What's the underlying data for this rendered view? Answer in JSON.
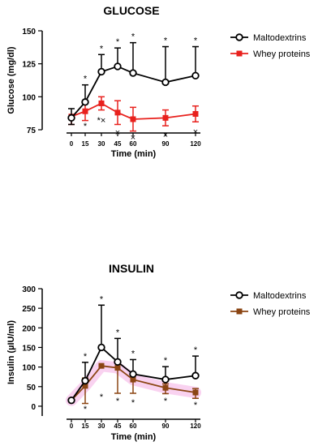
{
  "chart_data": [
    {
      "type": "line",
      "title": "GLUCOSE",
      "xlabel": "Time (min)",
      "ylabel": "Glucose (mg/dl)",
      "x": [
        0,
        15,
        30,
        45,
        60,
        90,
        120
      ],
      "xticks": [
        "0",
        "15",
        "30",
        "45",
        "60",
        "90",
        "120"
      ],
      "ylim": [
        75,
        150
      ],
      "yticks": [
        75,
        100,
        125,
        150
      ],
      "legend_position": "top-right",
      "series": [
        {
          "name": "Maltodextrins",
          "marker": "open-circle",
          "color": "#000000",
          "values": [
            84,
            96,
            119,
            123,
            118,
            111,
            116
          ],
          "error_up": [
            7,
            13,
            13,
            14,
            23,
            27,
            22
          ],
          "error_down": [
            5,
            0,
            0,
            0,
            0,
            0,
            0
          ],
          "annotations_above": [
            "",
            "*",
            "*",
            "*",
            "*",
            "*",
            "*"
          ]
        },
        {
          "name": "Whey proteins",
          "marker": "filled-square",
          "color": "#e8211d",
          "values": [
            85,
            89,
            95,
            88,
            83,
            84,
            87
          ],
          "error_up": [
            0,
            7,
            5,
            9,
            9,
            6,
            6
          ],
          "error_down": [
            6,
            7,
            5,
            9,
            9,
            6,
            6
          ]
        }
      ],
      "annotations_below": [
        "",
        "*",
        "*×",
        "×",
        "×",
        "×",
        "×"
      ]
    },
    {
      "type": "line",
      "title": "INSULIN",
      "xlabel": "Time (min)",
      "ylabel": "Insulin (µIU/ml)",
      "x": [
        0,
        15,
        30,
        45,
        60,
        90,
        120
      ],
      "xticks": [
        "0",
        "15",
        "30",
        "45",
        "60",
        "90",
        "120"
      ],
      "ylim": [
        -25,
        300
      ],
      "yticks": [
        0,
        50,
        100,
        150,
        200,
        250,
        300
      ],
      "legend_position": "top-right",
      "series": [
        {
          "name": "Maltodextrins",
          "marker": "open-circle",
          "color": "#000000",
          "values": [
            15,
            65,
            150,
            113,
            82,
            68,
            78
          ],
          "error_up": [
            3,
            47,
            108,
            60,
            37,
            33,
            50
          ],
          "error_down": [
            0,
            0,
            0,
            0,
            0,
            0,
            0
          ],
          "annotations_above": [
            "",
            "*",
            "*",
            "*",
            "*",
            "*",
            "*"
          ]
        },
        {
          "name": "Whey proteins",
          "marker": "filled-square",
          "color": "#8b4513",
          "values": [
            15,
            52,
            103,
            98,
            68,
            47,
            35
          ],
          "error_up": [
            3,
            20,
            0,
            0,
            10,
            10,
            10
          ],
          "error_down": [
            3,
            45,
            0,
            65,
            35,
            15,
            15
          ]
        }
      ],
      "annotations_below": [
        "",
        "*",
        "*",
        "*",
        "*",
        "*",
        "*"
      ]
    }
  ]
}
